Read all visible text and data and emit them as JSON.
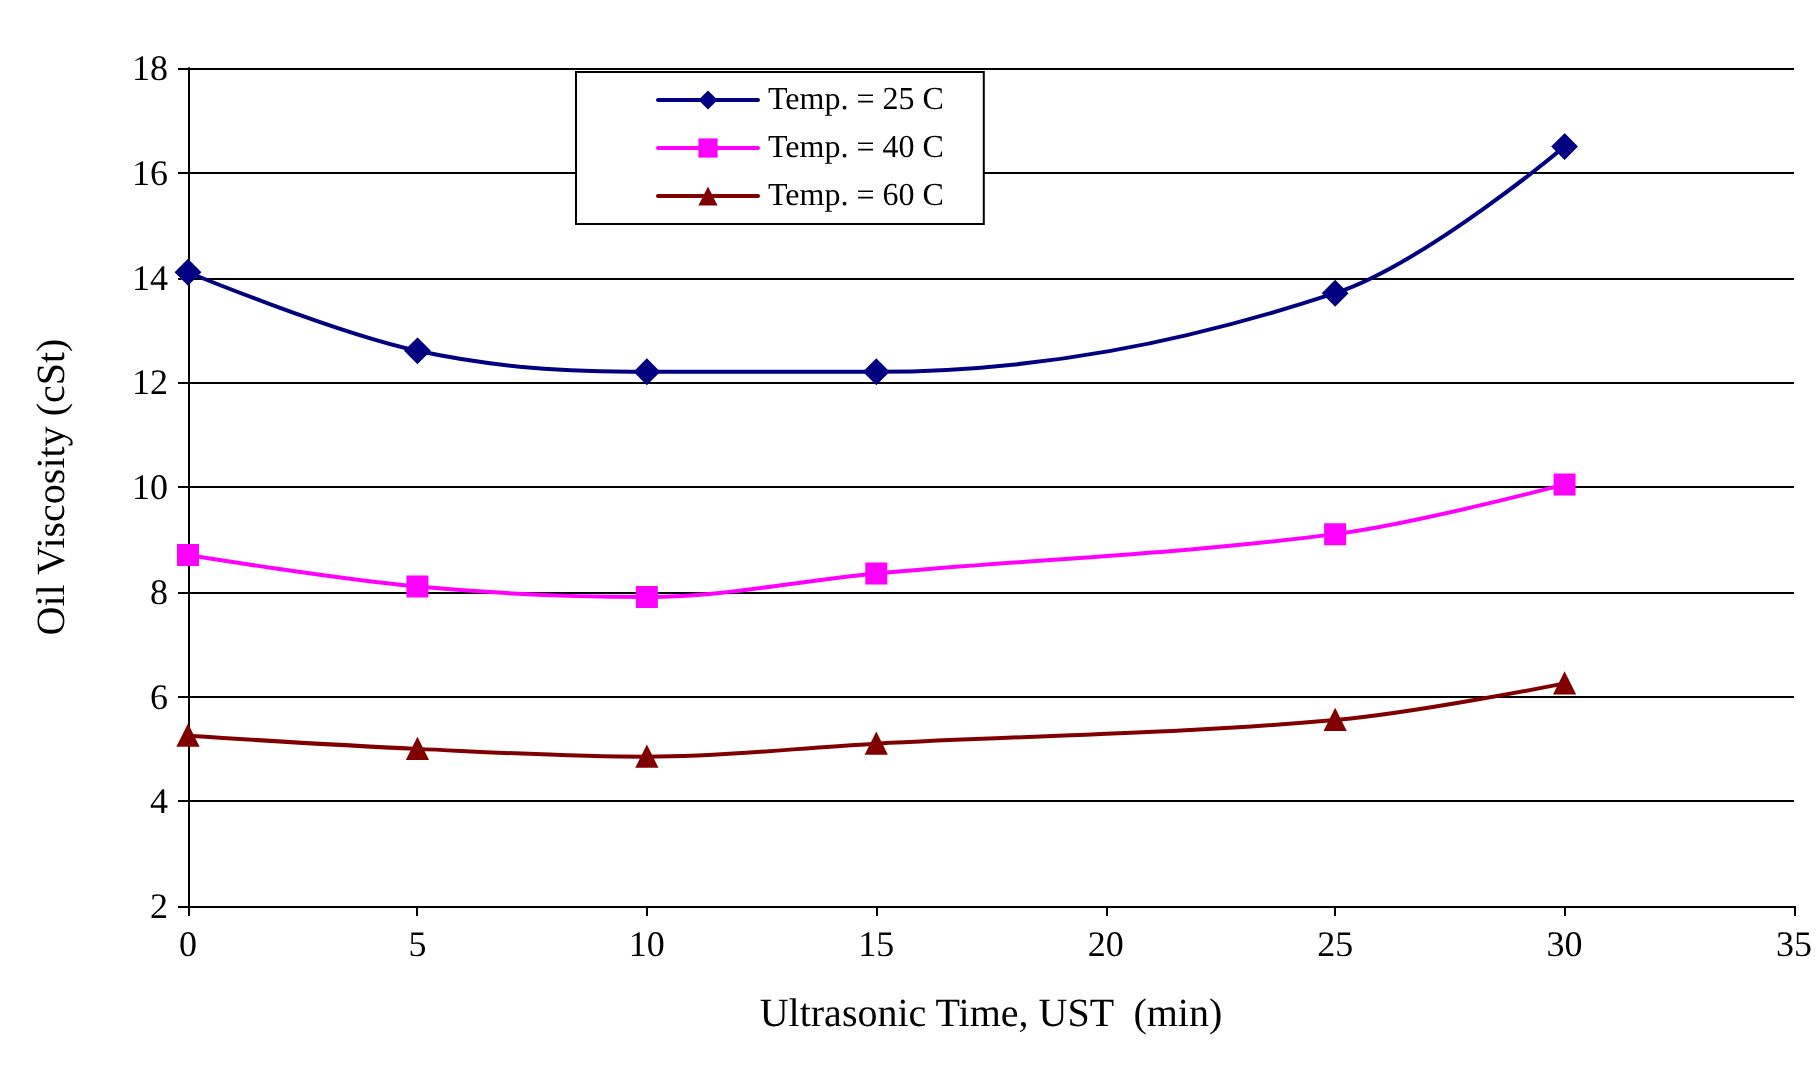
{
  "chart_data": {
    "type": "line",
    "xlabel": "Ultrasonic Time, UST  (min)",
    "ylabel": "Oil Viscosity (cSt)",
    "x": [
      0,
      5,
      10,
      15,
      25,
      30
    ],
    "series": [
      {
        "name": "Temp. = 25 C",
        "color": "#000080",
        "marker": "diamond",
        "values": [
          14.1,
          12.6,
          12.2,
          12.2,
          13.7,
          16.5
        ]
      },
      {
        "name": "Temp. = 40 C",
        "color": "#ff00ff",
        "marker": "square",
        "values": [
          8.7,
          8.1,
          7.9,
          8.35,
          9.1,
          10.05
        ]
      },
      {
        "name": "Temp. = 60 C",
        "color": "#800000",
        "marker": "triangle",
        "values": [
          5.25,
          5.0,
          4.85,
          5.1,
          5.55,
          6.25
        ]
      }
    ],
    "xlim": [
      0,
      35
    ],
    "xticks": [
      0,
      5,
      10,
      15,
      20,
      25,
      30,
      35
    ],
    "ylim": [
      2,
      18
    ],
    "yticks": [
      2,
      4,
      6,
      8,
      10,
      12,
      14,
      16,
      18
    ],
    "grid": "y",
    "legend": "top",
    "line_style": "solid"
  }
}
